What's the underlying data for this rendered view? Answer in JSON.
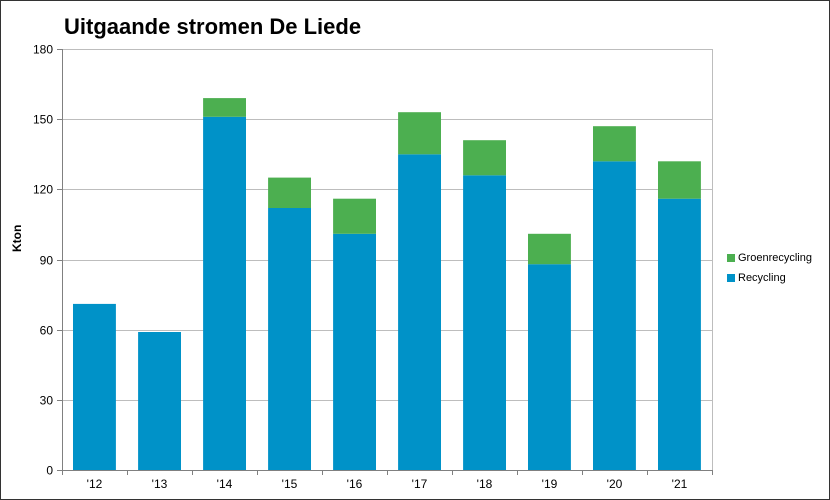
{
  "chart_data": {
    "type": "bar",
    "stacked": true,
    "title": "Uitgaande stromen De Liede",
    "xlabel": "",
    "ylabel": "Kton",
    "categories": [
      "'12",
      "'13",
      "'14",
      "'15",
      "'16",
      "'17",
      "'18",
      "'19",
      "'20",
      "'21"
    ],
    "series": [
      {
        "name": "Recycling",
        "color": "#0092C8",
        "values": [
          71,
          59,
          151,
          112,
          101,
          135,
          126,
          88,
          132,
          116
        ]
      },
      {
        "name": "Groenrecycling",
        "color": "#4CAF50",
        "values": [
          0,
          0,
          8,
          13,
          15,
          18,
          15,
          13,
          15,
          16
        ]
      }
    ],
    "ylim": [
      0,
      180
    ],
    "yticks": [
      0,
      30,
      60,
      90,
      120,
      150,
      180
    ],
    "grid": true,
    "legend_position": "right",
    "legend_order": [
      "Groenrecycling",
      "Recycling"
    ]
  }
}
